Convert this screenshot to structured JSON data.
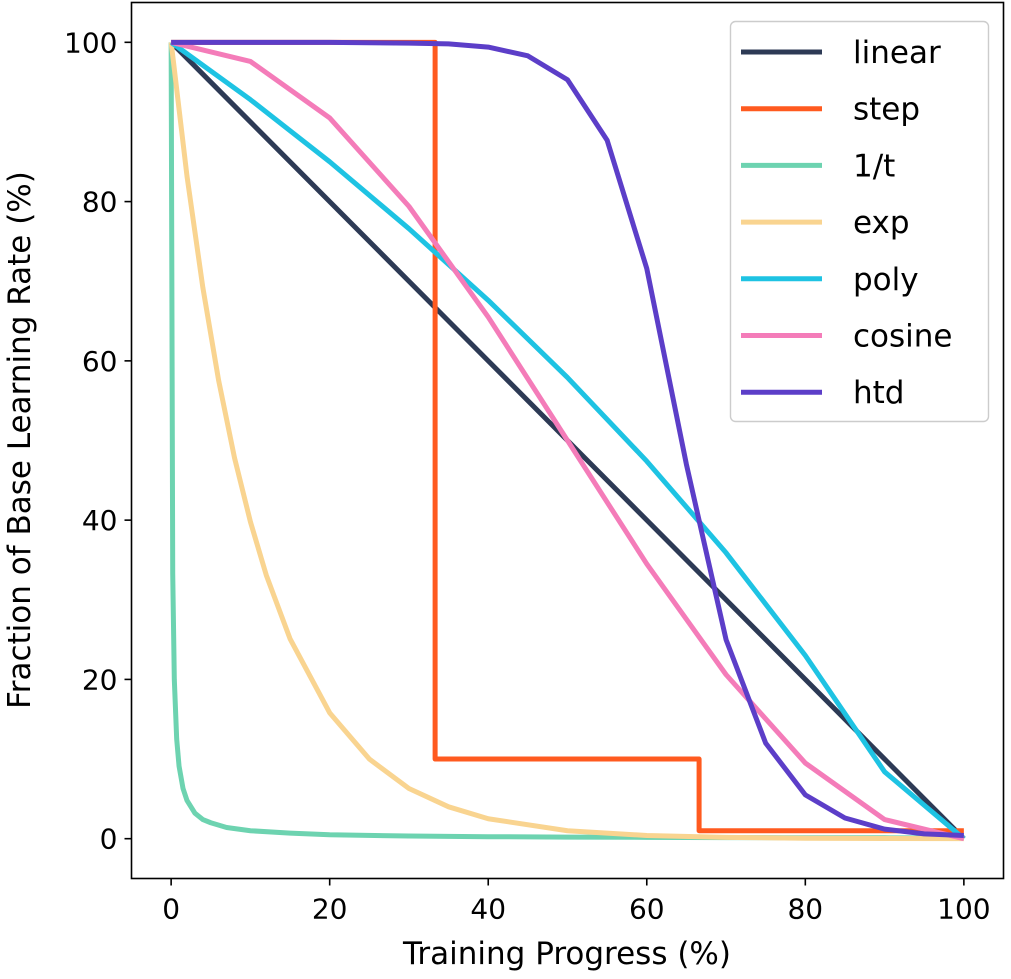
{
  "chart_data": {
    "type": "line",
    "xlabel": "Training Progress (%)",
    "ylabel": "Fraction of Base Learning Rate (%)",
    "xlim": [
      -5,
      105
    ],
    "ylim": [
      -5,
      105
    ],
    "xticks": [
      "0",
      "20",
      "40",
      "60",
      "80",
      "100"
    ],
    "yticks": [
      "0",
      "20",
      "40",
      "60",
      "80",
      "100"
    ],
    "grid": false,
    "legend_position": "top-right",
    "series": [
      {
        "name": "linear",
        "color": "#2d3a55",
        "x": [
          0,
          10,
          20,
          30,
          40,
          50,
          60,
          70,
          80,
          90,
          100
        ],
        "y": [
          100,
          90,
          80,
          70,
          60,
          50,
          40,
          30,
          20,
          10,
          0
        ]
      },
      {
        "name": "step",
        "color": "#ff5a1f",
        "x": [
          0,
          33.3,
          33.3,
          66.6,
          66.6,
          100
        ],
        "y": [
          100,
          100,
          10,
          10,
          1,
          1
        ]
      },
      {
        "name": "1/t",
        "color": "#6dd3b0",
        "x": [
          0,
          0.2,
          0.4,
          0.7,
          1,
          1.5,
          2,
          3,
          4,
          5,
          7,
          10,
          15,
          20,
          30,
          40,
          50,
          60,
          70,
          80,
          90,
          100
        ],
        "y": [
          100,
          33.3,
          20,
          12.5,
          9.1,
          6.3,
          4.8,
          3.2,
          2.4,
          2.0,
          1.4,
          1.0,
          0.7,
          0.5,
          0.33,
          0.25,
          0.2,
          0.17,
          0.14,
          0.12,
          0.11,
          0.1
        ]
      },
      {
        "name": "exp",
        "color": "#f9d490",
        "x": [
          0,
          2,
          4,
          6,
          8,
          10,
          12,
          15,
          20,
          25,
          30,
          35,
          40,
          50,
          60,
          70,
          80,
          90,
          100
        ],
        "y": [
          100,
          83.2,
          69.2,
          57.5,
          47.8,
          39.8,
          33.1,
          25.1,
          15.8,
          10.0,
          6.3,
          4.0,
          2.5,
          1.0,
          0.4,
          0.16,
          0.06,
          0.03,
          0.01
        ]
      },
      {
        "name": "poly",
        "color": "#1ec3e3",
        "x": [
          0,
          10,
          20,
          30,
          40,
          50,
          60,
          70,
          80,
          90,
          100
        ],
        "y": [
          100,
          92.8,
          85.0,
          76.6,
          67.6,
          57.9,
          47.4,
          35.9,
          23.0,
          8.4,
          0
        ]
      },
      {
        "name": "cosine",
        "color": "#f47cb9",
        "x": [
          0,
          10,
          20,
          30,
          40,
          50,
          60,
          70,
          80,
          90,
          100
        ],
        "y": [
          100,
          97.6,
          90.5,
          79.4,
          65.5,
          50.0,
          34.5,
          20.6,
          9.5,
          2.4,
          0
        ]
      },
      {
        "name": "htd",
        "color": "#5c3ec8",
        "x": [
          0,
          10,
          20,
          30,
          35,
          40,
          45,
          50,
          55,
          60,
          65,
          70,
          75,
          80,
          85,
          90,
          95,
          100
        ],
        "y": [
          100,
          100,
          100,
          99.9,
          99.8,
          99.4,
          98.3,
          95.3,
          87.7,
          71.6,
          47.0,
          25.0,
          12.0,
          5.5,
          2.6,
          1.2,
          0.6,
          0.4
        ]
      }
    ]
  }
}
